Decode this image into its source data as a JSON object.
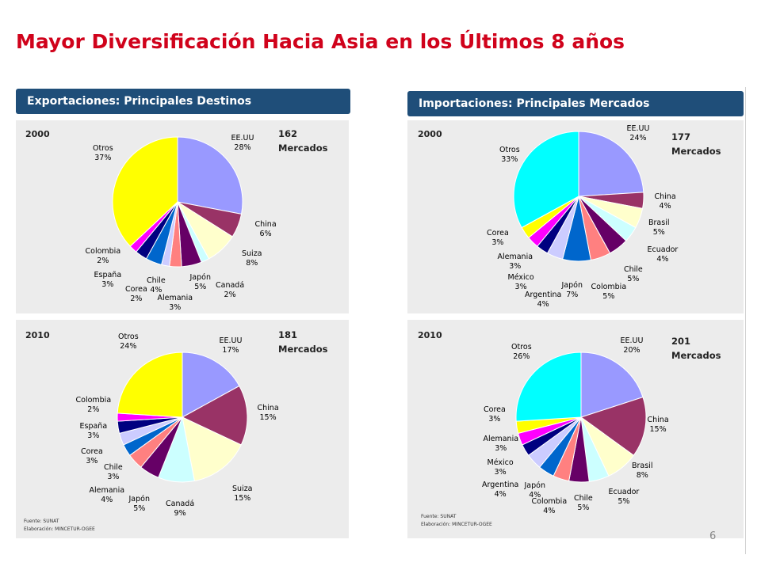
{
  "title": "Mayor Diversificación Hacia Asia en los Últimos 8 años",
  "headers": {
    "exports": "Exportaciones: Principales Destinos",
    "imports": "Importaciones: Principales Mercados"
  },
  "source_text": "Fuente: SUNAT",
  "elaboration_text": "Elaboración: MINCETUR-OGEE",
  "page_number": "6",
  "chart_data": [
    {
      "type": "pie",
      "year": "2000",
      "markets_count": "162",
      "markets_label": "Mercados",
      "categories": [
        "EE.UU",
        "China",
        "Suiza",
        "Canadá",
        "Japón",
        "Alemania",
        "Corea",
        "Chile",
        "España",
        "Colombia",
        "Otros"
      ],
      "values": [
        28,
        6,
        8,
        2,
        5,
        3,
        2,
        4,
        3,
        2,
        37
      ],
      "percent_labels": [
        "28%",
        "6%",
        "8%",
        "2%",
        "5%",
        "3%",
        "2%",
        "4%",
        "3%",
        "2%",
        "37%"
      ],
      "colors": [
        "#9999ff",
        "#993366",
        "#ffffcc",
        "#ccffff",
        "#660066",
        "#ff8080",
        "#ccccff",
        "#0066cc",
        "#000080",
        "#ff00ff",
        "#ffff00"
      ]
    },
    {
      "type": "pie",
      "year": "2000",
      "markets_count": "177",
      "markets_label": "Mercados",
      "categories": [
        "EE.UU",
        "China",
        "Brasil",
        "Ecuador",
        "Chile",
        "Colombia",
        "Japón",
        "Argentina",
        "México",
        "Alemania",
        "Corea",
        "Otros"
      ],
      "values": [
        24,
        4,
        5,
        4,
        5,
        5,
        7,
        4,
        3,
        3,
        3,
        33
      ],
      "percent_labels": [
        "24%",
        "4%",
        "5%",
        "4%",
        "5%",
        "5%",
        "7%",
        "4%",
        "3%",
        "3%",
        "3%",
        "33%"
      ],
      "colors": [
        "#9999ff",
        "#993366",
        "#ffffcc",
        "#ccffff",
        "#660066",
        "#ff8080",
        "#0066cc",
        "#ccccff",
        "#000080",
        "#ff00ff",
        "#ffff00",
        "#00ffff"
      ]
    },
    {
      "type": "pie",
      "year": "2010",
      "markets_count": "181",
      "markets_label": "Mercados",
      "categories": [
        "EE.UU",
        "China",
        "Suiza",
        "Canadá",
        "Japón",
        "Alemania",
        "Chile",
        "Corea",
        "España",
        "Colombia",
        "Otros"
      ],
      "values": [
        17,
        15,
        15,
        9,
        5,
        4,
        3,
        3,
        3,
        2,
        24
      ],
      "percent_labels": [
        "17%",
        "15%",
        "15%",
        "9%",
        "5%",
        "4%",
        "3%",
        "3%",
        "3%",
        "2%",
        "24%"
      ],
      "colors": [
        "#9999ff",
        "#993366",
        "#ffffcc",
        "#ccffff",
        "#660066",
        "#ff8080",
        "#0066cc",
        "#ccccff",
        "#000080",
        "#ff00ff",
        "#ffff00"
      ]
    },
    {
      "type": "pie",
      "year": "2010",
      "markets_count": "201",
      "markets_label": "Mercados",
      "categories": [
        "EE.UU",
        "China",
        "Brasil",
        "Ecuador",
        "Chile",
        "Colombia",
        "Japón",
        "Argentina",
        "México",
        "Alemania",
        "Corea",
        "Otros"
      ],
      "values": [
        20,
        15,
        8,
        5,
        5,
        4,
        4,
        4,
        3,
        3,
        3,
        26
      ],
      "percent_labels": [
        "20%",
        "15%",
        "8%",
        "5%",
        "5%",
        "4%",
        "4%",
        "4%",
        "3%",
        "3%",
        "3%",
        "26%"
      ],
      "colors": [
        "#9999ff",
        "#993366",
        "#ffffcc",
        "#ccffff",
        "#660066",
        "#ff8080",
        "#0066cc",
        "#ccccff",
        "#000080",
        "#ff00ff",
        "#ffff00",
        "#00ffff"
      ]
    }
  ]
}
